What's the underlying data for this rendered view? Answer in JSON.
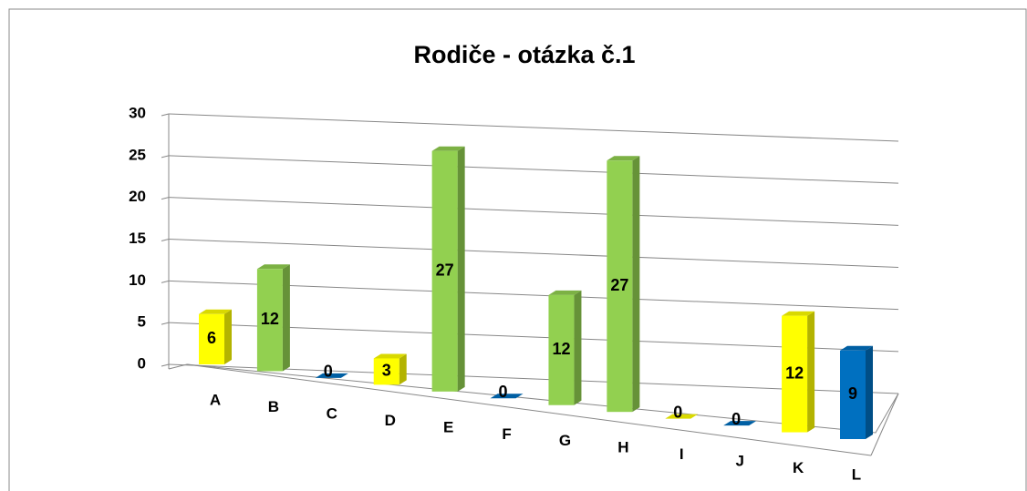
{
  "chart_data": {
    "type": "bar3d",
    "title": "Rodiče - otázka č.1",
    "categories": [
      "A",
      "B",
      "C",
      "D",
      "E",
      "F",
      "G",
      "H",
      "I",
      "J",
      "K",
      "L"
    ],
    "values": [
      6,
      12,
      0,
      3,
      27,
      0,
      12,
      27,
      0,
      0,
      12,
      9
    ],
    "colors": [
      "#ffff00",
      "#92d050",
      "#0070c0",
      "#ffff00",
      "#92d050",
      "#0070c0",
      "#92d050",
      "#92d050",
      "#ffff00",
      "#0070c0",
      "#ffff00",
      "#0070c0"
    ],
    "ylim": [
      0,
      30
    ],
    "yticks": [
      0,
      5,
      10,
      15,
      20,
      25,
      30
    ],
    "grid": true,
    "data_labels": true
  }
}
